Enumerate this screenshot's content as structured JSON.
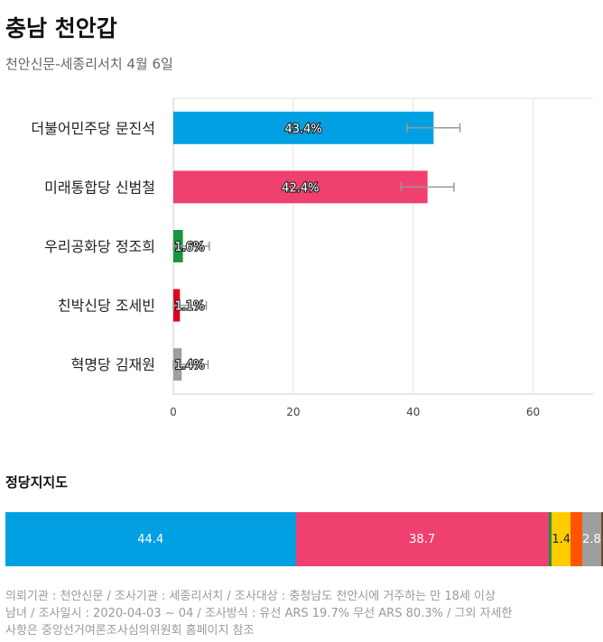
{
  "header": {
    "title": "충남 천안갑",
    "subtitle": "천안신문-세종리서치 4월 6일"
  },
  "chart_data": [
    {
      "type": "bar",
      "orientation": "horizontal",
      "categories": [
        "더불어민주당 문진석",
        "미래통합당 신범철",
        "우리공화당 정조희",
        "친박신당 조세빈",
        "혁명당 김재원"
      ],
      "values": [
        43.4,
        42.4,
        1.6,
        1.1,
        1.4
      ],
      "value_labels": [
        "43.4%",
        "42.4%",
        "1.6%",
        "1.1%",
        "1.4%"
      ],
      "error_margin": 4.4,
      "colors": [
        "#00a0e2",
        "#f04070",
        "#1a9641",
        "#e3001b",
        "#9e9e9e"
      ],
      "xlim": [
        0,
        70
      ],
      "xticks": [
        0,
        20,
        40,
        60
      ],
      "grid": true
    },
    {
      "type": "bar",
      "orientation": "stacked-horizontal",
      "title": "정당지지도",
      "segments": [
        {
          "value": 44.4,
          "label": "44.4",
          "color": "#00a0e2"
        },
        {
          "value": 38.7,
          "label": "38.7",
          "color": "#f04070"
        },
        {
          "value": 0.5,
          "label": "",
          "color": "#1a9641"
        },
        {
          "value": 1.4,
          "label": "1.4",
          "color": "#ffcc00"
        },
        {
          "value": 1.8,
          "label": "",
          "color": "#ff5500"
        },
        {
          "value": 2.8,
          "label": "2.8",
          "color": "#9e9e9e"
        },
        {
          "value": 0.3,
          "label": "",
          "color": "#6b4e2e"
        }
      ]
    }
  ],
  "footer": {
    "line1": "의뢰기관 : 천안신문 / 조사기관 : 세종리서치 / 조사대상 : 충청남도 천안시에 거주하는 만 18세 이상",
    "line2": "남녀 / 조사일시 : 2020-04-03 ~ 04 / 조사방식 : 유선 ARS 19.7% 무선 ARS 80.3% / 그외 자세한",
    "line3": "사항은 중앙선거여론조사심의위원회 홈페이지 참조"
  }
}
